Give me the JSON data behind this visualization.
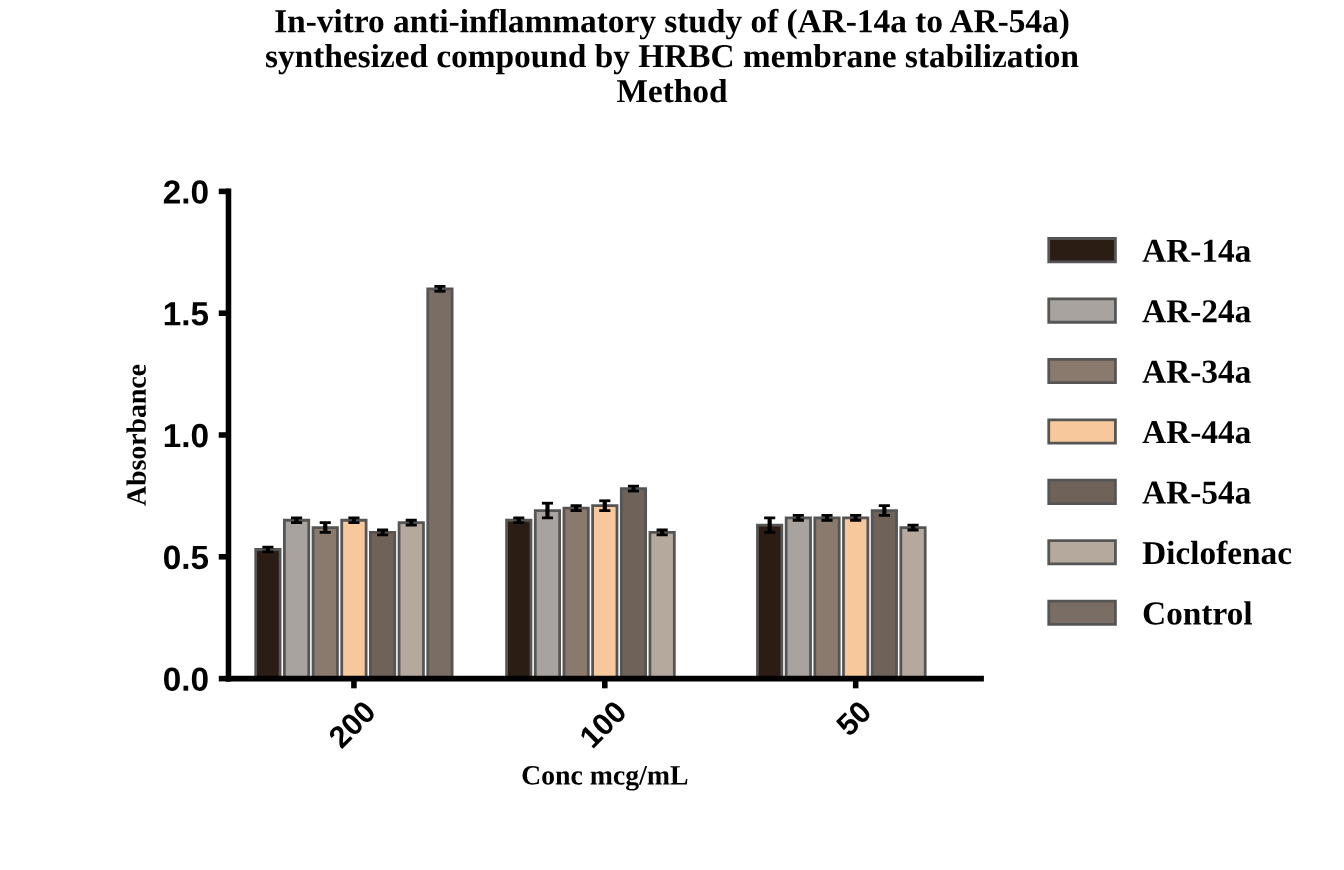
{
  "chart_data": {
    "type": "bar",
    "title": "In-vitro anti-inflammatory study of (AR-14a to AR-54a)\nsynthesized compound by HRBC membrane stabilization\nMethod",
    "xlabel": "Conc mcg/mL",
    "ylabel": "Absorbance",
    "categories": [
      "200",
      "100",
      "50"
    ],
    "series": [
      {
        "name": "AR-14a",
        "color": "#2b1d14",
        "values": [
          0.53,
          0.65,
          0.63
        ],
        "errors": [
          0.01,
          0.01,
          0.03
        ]
      },
      {
        "name": "AR-24a",
        "color": "#a8a39e",
        "values": [
          0.65,
          0.69,
          0.66
        ],
        "errors": [
          0.01,
          0.03,
          0.01
        ]
      },
      {
        "name": "AR-34a",
        "color": "#8a7a6e",
        "values": [
          0.62,
          0.7,
          0.66
        ],
        "errors": [
          0.02,
          0.01,
          0.01
        ]
      },
      {
        "name": "AR-44a",
        "color": "#f7c89b",
        "values": [
          0.65,
          0.71,
          0.66
        ],
        "errors": [
          0.01,
          0.02,
          0.01
        ]
      },
      {
        "name": "AR-54a",
        "color": "#6e6259",
        "values": [
          0.6,
          0.78,
          0.69
        ],
        "errors": [
          0.01,
          0.01,
          0.02
        ]
      },
      {
        "name": "Diclofenac",
        "color": "#b5a89c",
        "values": [
          0.64,
          0.6,
          0.62
        ],
        "errors": [
          0.01,
          0.01,
          0.01
        ]
      },
      {
        "name": "Control",
        "color": "#7a6d64",
        "values": [
          1.6,
          null,
          null
        ],
        "errors": [
          0.01,
          null,
          null
        ]
      }
    ],
    "ylim": [
      0,
      2
    ],
    "yticks": [
      {
        "value": 0,
        "label": "0.0"
      },
      0.5,
      {
        "value": 1,
        "label": "1.0"
      },
      1.5,
      {
        "value": 2,
        "label": "2.0"
      }
    ],
    "grid": false,
    "legend": "right"
  }
}
